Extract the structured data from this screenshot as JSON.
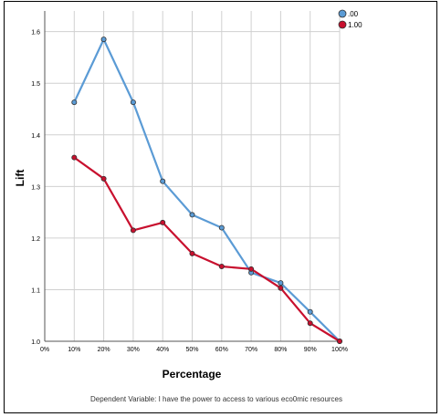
{
  "chart_data": {
    "type": "line",
    "title": "",
    "xlabel": "Percentage",
    "ylabel": "Lift",
    "footnote": "Dependent Variable: I have the power to access to various eco0mic resources",
    "x_ticks": [
      "0%",
      "10%",
      "20%",
      "30%",
      "40%",
      "50%",
      "60%",
      "70%",
      "80%",
      "90%",
      "100%"
    ],
    "y_ticks": [
      "1.0",
      "1.1",
      "1.2",
      "1.3",
      "1.4",
      "1.5",
      "1.6"
    ],
    "ylim": [
      1.0,
      1.64
    ],
    "xlim": [
      0,
      100
    ],
    "grid": true,
    "legend_position": "top-right",
    "series": [
      {
        "name": ".00",
        "color": "#5b9bd5",
        "x": [
          10,
          20,
          30,
          40,
          50,
          60,
          70,
          80,
          90,
          100
        ],
        "y": [
          1.463,
          1.585,
          1.463,
          1.31,
          1.245,
          1.22,
          1.133,
          1.113,
          1.057,
          1.0
        ]
      },
      {
        "name": "1.00",
        "color": "#c8102e",
        "x": [
          10,
          20,
          30,
          40,
          50,
          60,
          70,
          80,
          90,
          100
        ],
        "y": [
          1.356,
          1.315,
          1.215,
          1.23,
          1.17,
          1.145,
          1.14,
          1.103,
          1.035,
          1.0
        ]
      }
    ]
  }
}
